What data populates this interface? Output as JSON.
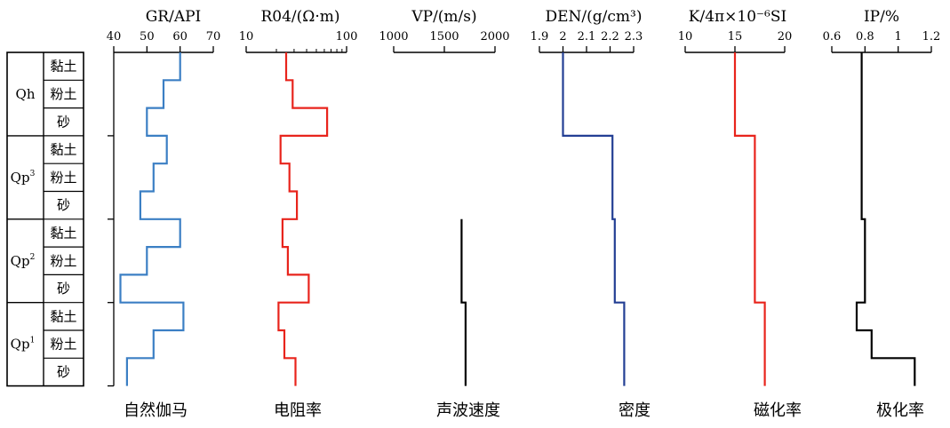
{
  "chart_data": {
    "type": "line",
    "depth_units": [
      "黏土",
      "粉土",
      "砂",
      "黏土",
      "粉土",
      "砂",
      "黏土",
      "粉土",
      "砂",
      "黏土",
      "粉土",
      "砂"
    ],
    "strata": [
      {
        "label": "Qh",
        "sup": "",
        "units": [
          0,
          1,
          2
        ]
      },
      {
        "label": "Qp",
        "sup": "3",
        "units": [
          3,
          4,
          5
        ]
      },
      {
        "label": "Qp",
        "sup": "2",
        "units": [
          6,
          7,
          8
        ]
      },
      {
        "label": "Qp",
        "sup": "1",
        "units": [
          9,
          10,
          11
        ]
      }
    ],
    "tracks": [
      {
        "title": "GR/API",
        "name": "自然伽马",
        "color": "#3b7fc4",
        "scale": "linear",
        "range": [
          40,
          70
        ],
        "tick_labels": [
          "40",
          "50",
          "60",
          "70"
        ],
        "tick_values": [
          40,
          50,
          60,
          70
        ],
        "values": [
          60,
          55,
          50,
          56,
          52,
          48,
          60,
          50,
          42,
          61,
          52,
          44
        ]
      },
      {
        "title": "R04/(Ω·m)",
        "name": "电阻率",
        "color": "#e8241c",
        "scale": "log",
        "range": [
          10,
          100
        ],
        "tick_labels": [
          "10",
          "100"
        ],
        "tick_values": [
          10,
          100
        ],
        "minor_ticks": [
          20,
          30,
          40,
          50,
          60,
          70,
          80,
          90
        ],
        "values": [
          25,
          29,
          64,
          22,
          27,
          32,
          23,
          26,
          42,
          21,
          24,
          31
        ]
      },
      {
        "title": "VP/(m/s)",
        "name": "声波速度",
        "color": "#000000",
        "scale": "linear",
        "range": [
          1000,
          2000
        ],
        "tick_labels": [
          "1000",
          "1500",
          "2000"
        ],
        "tick_values": [
          1000,
          1500,
          2000
        ],
        "values": [
          null,
          null,
          null,
          null,
          null,
          null,
          1670,
          1670,
          1670,
          1710,
          1710,
          1710
        ]
      },
      {
        "title": "DEN/(g/cm³)",
        "name": "密度",
        "color": "#233f94",
        "scale": "linear",
        "range": [
          1.9,
          2.3
        ],
        "tick_labels": [
          "1.9",
          "2",
          "2.1",
          "2.2",
          "2.3"
        ],
        "tick_values": [
          1.9,
          2.0,
          2.1,
          2.2,
          2.3
        ],
        "values": [
          2.0,
          2.0,
          2.0,
          2.21,
          2.21,
          2.21,
          2.22,
          2.22,
          2.22,
          2.26,
          2.26,
          2.26
        ]
      },
      {
        "title": "K/4π×10⁻⁶SI",
        "name": "磁化率",
        "color": "#e8241c",
        "scale": "linear",
        "range": [
          10,
          20
        ],
        "tick_labels": [
          "10",
          "15",
          "20"
        ],
        "tick_values": [
          10,
          15,
          20
        ],
        "values": [
          15,
          15,
          15,
          17,
          17,
          17,
          17,
          17,
          17,
          18,
          18,
          18
        ]
      },
      {
        "title": "IP/%",
        "name": "极化率",
        "color": "#000000",
        "scale": "linear",
        "range": [
          0.6,
          1.2
        ],
        "tick_labels": [
          "0.6",
          "0.8",
          "1",
          "1.2"
        ],
        "tick_values": [
          0.6,
          0.8,
          1.0,
          1.2
        ],
        "values": [
          0.78,
          0.78,
          0.78,
          0.78,
          0.78,
          0.78,
          0.8,
          0.8,
          0.8,
          0.75,
          0.84,
          1.1
        ]
      }
    ]
  }
}
